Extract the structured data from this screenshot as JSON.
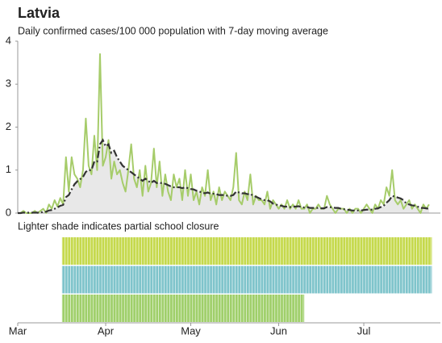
{
  "chart_data": {
    "type": "line",
    "title": "Latvia",
    "subtitle": "Daily confirmed cases/100 000 population with 7-day moving average",
    "x": [
      0,
      1,
      2,
      3,
      4,
      5,
      6,
      7,
      8,
      9,
      10,
      11,
      12,
      13,
      14,
      15,
      16,
      17,
      18,
      19,
      20,
      21,
      22,
      23,
      24,
      25,
      26,
      27,
      28,
      29,
      30,
      31,
      32,
      33,
      34,
      35,
      36,
      37,
      38,
      39,
      40,
      41,
      42,
      43,
      44,
      45,
      46,
      47,
      48,
      49,
      50,
      51,
      52,
      53,
      54,
      55,
      56,
      57,
      58,
      59,
      60,
      61,
      62,
      63,
      64,
      65,
      66,
      67,
      68,
      69,
      70,
      71,
      72,
      73,
      74,
      75,
      76,
      77,
      78,
      79,
      80,
      81,
      82,
      83,
      84,
      85,
      86,
      87,
      88,
      89,
      90,
      91,
      92,
      93,
      94,
      95,
      96,
      97,
      98,
      99,
      100,
      101,
      102,
      103,
      104,
      105,
      106,
      107,
      108,
      109,
      110,
      111,
      112,
      113,
      114,
      115,
      116,
      117,
      118,
      119,
      120,
      121,
      122,
      123,
      124,
      125,
      126,
      127,
      128,
      129,
      130,
      131,
      132,
      133,
      134,
      135,
      136,
      137,
      138,
      139,
      140,
      141,
      142,
      143,
      144,
      145
    ],
    "series": [
      {
        "color": "#a6cc6a",
        "values": [
          0,
          0,
          0.05,
          0,
          0,
          0,
          0.05,
          0,
          0.05,
          0.1,
          0,
          0.2,
          0.1,
          0.3,
          0.15,
          0.35,
          0.2,
          1.3,
          0.5,
          1.3,
          0.9,
          0.8,
          0.6,
          1.0,
          2.2,
          1.1,
          0.9,
          1.8,
          1.0,
          3.7,
          1.1,
          1.3,
          1.7,
          0.8,
          1.2,
          0.9,
          1.0,
          0.7,
          0.5,
          1.0,
          1.6,
          0.8,
          0.6,
          1.0,
          0.4,
          1.1,
          0.5,
          0.7,
          1.5,
          0.6,
          1.2,
          0.4,
          0.9,
          0.5,
          0.3,
          0.9,
          0.6,
          0.8,
          0.3,
          1.0,
          0.4,
          0.9,
          0.3,
          0.5,
          0.2,
          0.6,
          0.4,
          1.0,
          0.3,
          0.5,
          0.2,
          0.6,
          0.3,
          0.5,
          0.4,
          0.3,
          0.6,
          1.4,
          0.3,
          0.2,
          0.5,
          0.3,
          0.9,
          0.2,
          0.4,
          0.3,
          0.3,
          0.2,
          0.5,
          0.1,
          0.3,
          0.2,
          0.1,
          0.2,
          0.1,
          0.3,
          0.1,
          0.2,
          0.1,
          0.3,
          0.1,
          0.1,
          0.2,
          0.0,
          0.1,
          0.1,
          0.2,
          0.1,
          0.1,
          0.4,
          0.2,
          0.1,
          0.0,
          0.1,
          0.1,
          0.1,
          0.0,
          0.1,
          0.0,
          0.1,
          0.1,
          0.0,
          0.1,
          0.2,
          0.1,
          0.0,
          0.2,
          0.1,
          0.3,
          0.2,
          0.6,
          0.4,
          1.0,
          0.3,
          0.2,
          0.3,
          0.1,
          0.2,
          0.3,
          0.1,
          0.2,
          0.1,
          0.0,
          0.2,
          0.1,
          0.2
        ]
      },
      {
        "color": "#333333",
        "values": [
          0,
          0,
          0.01,
          0.01,
          0.01,
          0.01,
          0.01,
          0.01,
          0.01,
          0.03,
          0.03,
          0.06,
          0.07,
          0.1,
          0.13,
          0.17,
          0.19,
          0.37,
          0.42,
          0.55,
          0.67,
          0.74,
          0.79,
          0.84,
          0.96,
          1.0,
          1.0,
          1.2,
          1.2,
          1.6,
          1.7,
          1.55,
          1.6,
          1.4,
          1.45,
          1.3,
          1.2,
          1.1,
          1.05,
          1.0,
          0.95,
          0.9,
          0.85,
          0.8,
          0.75,
          0.8,
          0.75,
          0.7,
          0.75,
          0.7,
          0.7,
          0.7,
          0.68,
          0.65,
          0.62,
          0.6,
          0.6,
          0.6,
          0.58,
          0.6,
          0.58,
          0.56,
          0.55,
          0.52,
          0.5,
          0.48,
          0.46,
          0.48,
          0.45,
          0.45,
          0.44,
          0.42,
          0.42,
          0.42,
          0.4,
          0.4,
          0.42,
          0.5,
          0.48,
          0.46,
          0.46,
          0.44,
          0.45,
          0.4,
          0.38,
          0.35,
          0.32,
          0.3,
          0.3,
          0.27,
          0.22,
          0.2,
          0.18,
          0.17,
          0.15,
          0.15,
          0.14,
          0.15,
          0.15,
          0.16,
          0.14,
          0.13,
          0.14,
          0.12,
          0.12,
          0.12,
          0.12,
          0.11,
          0.11,
          0.14,
          0.14,
          0.13,
          0.12,
          0.12,
          0.1,
          0.09,
          0.08,
          0.07,
          0.06,
          0.06,
          0.06,
          0.06,
          0.07,
          0.08,
          0.08,
          0.08,
          0.1,
          0.11,
          0.14,
          0.17,
          0.24,
          0.3,
          0.4,
          0.38,
          0.36,
          0.34,
          0.3,
          0.22,
          0.2,
          0.18,
          0.17,
          0.15,
          0.12,
          0.12,
          0.11,
          0.1
        ]
      }
    ],
    "xlim": [
      0,
      149
    ],
    "xticks": [
      {
        "value": 0,
        "label": "Mar"
      },
      {
        "value": 31,
        "label": "Apr"
      },
      {
        "value": 61,
        "label": "May"
      },
      {
        "value": 92,
        "label": "Jun"
      },
      {
        "value": 122,
        "label": "Jul"
      }
    ],
    "ylim": [
      0,
      4
    ],
    "yticks": [
      0,
      1,
      2,
      3,
      4
    ],
    "school_closure": {
      "note": "Lighter shade indicates partial school closure",
      "rows": [
        {
          "color": "#c5d94c",
          "start": 15.6,
          "end": 146
        },
        {
          "color": "#7fc4cb",
          "start": 15.6,
          "end": 146
        },
        {
          "color": "#9fcf6a",
          "start": 15.6,
          "end": 101
        }
      ]
    }
  }
}
